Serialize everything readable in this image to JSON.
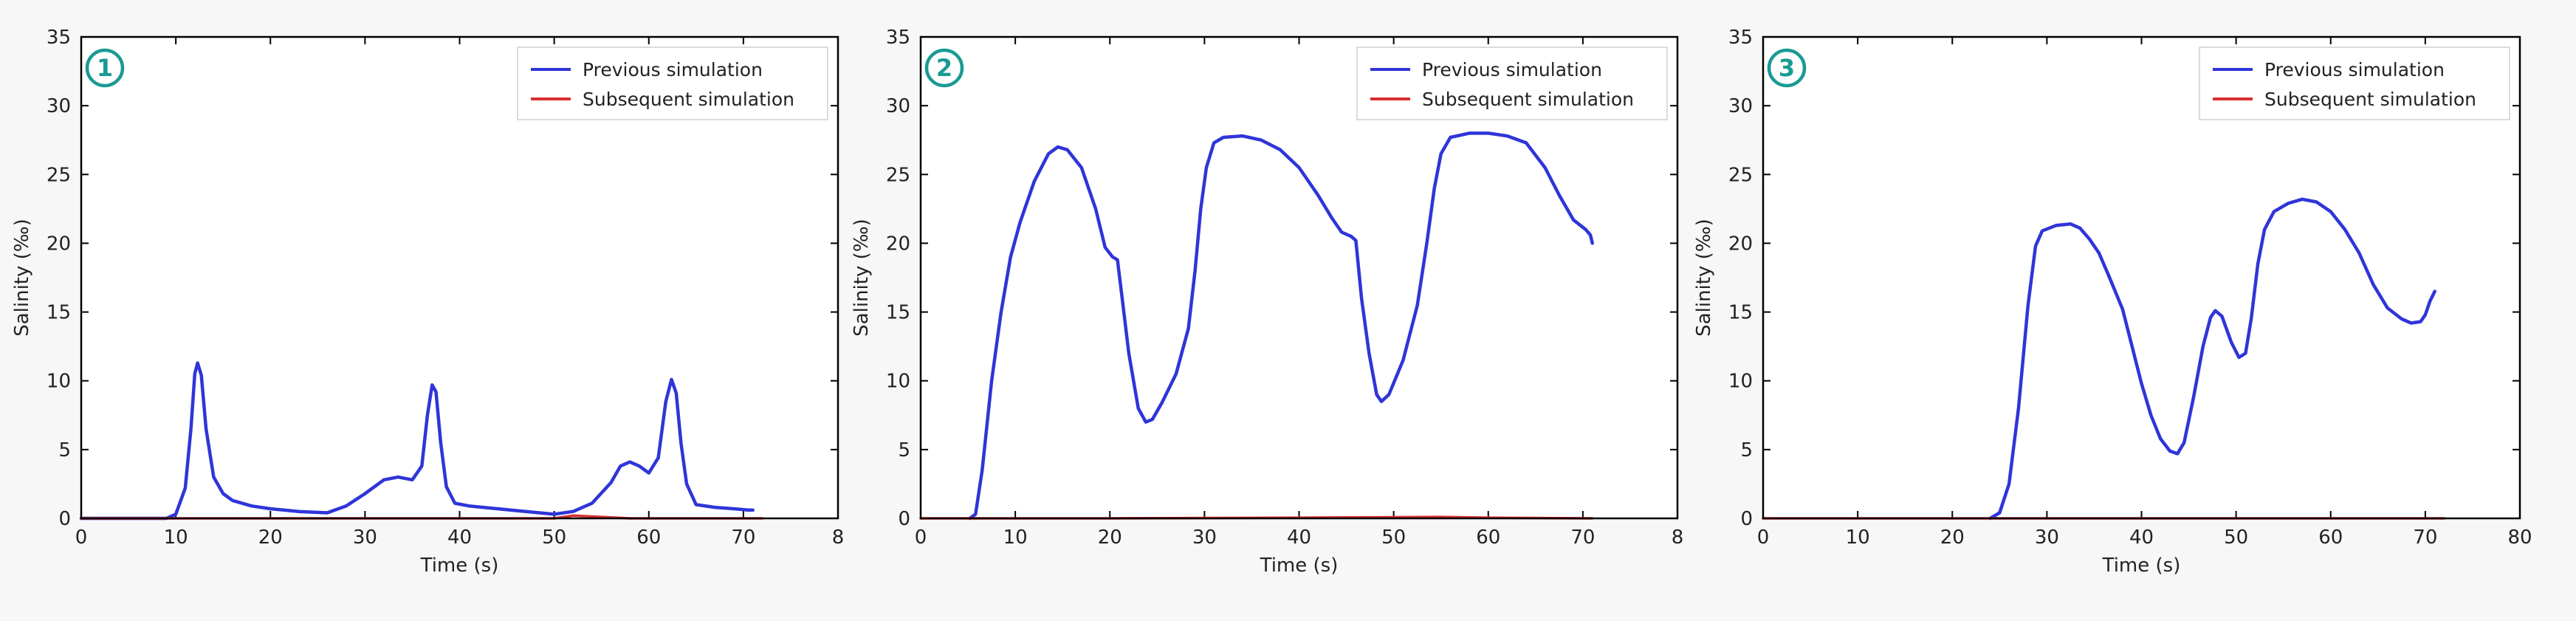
{
  "chart_data": [
    {
      "type": "line",
      "badge": "1",
      "xlabel": "Time (s)",
      "ylabel": "Salinity (‰)",
      "xlim": [
        0,
        80
      ],
      "ylim": [
        0,
        35
      ],
      "xticks": [
        "0",
        "10",
        "20",
        "30",
        "40",
        "50",
        "60",
        "70",
        "8"
      ],
      "yticks": [
        "0",
        "5",
        "10",
        "15",
        "20",
        "25",
        "30",
        "35"
      ],
      "legend_position": "top-right",
      "series": [
        {
          "name": "Previous simulation",
          "color": "#2f35d8",
          "points": [
            [
              0,
              0
            ],
            [
              9,
              0
            ],
            [
              10,
              0.3
            ],
            [
              11,
              2.2
            ],
            [
              11.6,
              6.5
            ],
            [
              12,
              10.5
            ],
            [
              12.3,
              11.3
            ],
            [
              12.7,
              10.4
            ],
            [
              13.2,
              6.5
            ],
            [
              14,
              3
            ],
            [
              15,
              1.8
            ],
            [
              16,
              1.3
            ],
            [
              18,
              0.9
            ],
            [
              20,
              0.7
            ],
            [
              23,
              0.5
            ],
            [
              26,
              0.4
            ],
            [
              28,
              0.9
            ],
            [
              30,
              1.8
            ],
            [
              32,
              2.8
            ],
            [
              33.5,
              3
            ],
            [
              35,
              2.8
            ],
            [
              36,
              3.8
            ],
            [
              36.6,
              7.5
            ],
            [
              37.1,
              9.7
            ],
            [
              37.5,
              9.2
            ],
            [
              38,
              5.5
            ],
            [
              38.6,
              2.3
            ],
            [
              39.5,
              1.1
            ],
            [
              41,
              0.9
            ],
            [
              44,
              0.7
            ],
            [
              47,
              0.5
            ],
            [
              50,
              0.3
            ],
            [
              52,
              0.5
            ],
            [
              54,
              1.1
            ],
            [
              56,
              2.6
            ],
            [
              57,
              3.8
            ],
            [
              58,
              4.1
            ],
            [
              59,
              3.8
            ],
            [
              60,
              3.3
            ],
            [
              61,
              4.4
            ],
            [
              61.8,
              8.5
            ],
            [
              62.4,
              10.1
            ],
            [
              62.9,
              9.1
            ],
            [
              63.4,
              5.5
            ],
            [
              64,
              2.5
            ],
            [
              65,
              1
            ],
            [
              67,
              0.8
            ],
            [
              69,
              0.7
            ],
            [
              70.5,
              0.6
            ],
            [
              71,
              0.6
            ]
          ]
        },
        {
          "name": "Subsequent simulation",
          "color": "#d93030",
          "points": [
            [
              0,
              0
            ],
            [
              50,
              0
            ],
            [
              52,
              0.2
            ],
            [
              55,
              0.1
            ],
            [
              58,
              0
            ],
            [
              72,
              0
            ]
          ]
        }
      ]
    },
    {
      "type": "line",
      "badge": "2",
      "xlabel": "Time (s)",
      "ylabel": "Salinity (‰)",
      "xlim": [
        0,
        80
      ],
      "ylim": [
        0,
        35
      ],
      "xticks": [
        "0",
        "10",
        "20",
        "30",
        "40",
        "50",
        "60",
        "70",
        "8"
      ],
      "yticks": [
        "0",
        "5",
        "10",
        "15",
        "20",
        "25",
        "30",
        "35"
      ],
      "legend_position": "top-right",
      "series": [
        {
          "name": "Previous simulation",
          "color": "#2f35d8",
          "points": [
            [
              5.2,
              0
            ],
            [
              5.8,
              0.3
            ],
            [
              6.5,
              3.5
            ],
            [
              7.5,
              10
            ],
            [
              8.5,
              15
            ],
            [
              9.5,
              19
            ],
            [
              10.5,
              21.5
            ],
            [
              12,
              24.5
            ],
            [
              13.5,
              26.5
            ],
            [
              14.5,
              27
            ],
            [
              15.5,
              26.8
            ],
            [
              17,
              25.5
            ],
            [
              18.5,
              22.5
            ],
            [
              19.5,
              19.7
            ],
            [
              20.3,
              19
            ],
            [
              20.8,
              18.8
            ],
            [
              21.3,
              16
            ],
            [
              22,
              12
            ],
            [
              23,
              8
            ],
            [
              23.8,
              7
            ],
            [
              24.5,
              7.2
            ],
            [
              25.5,
              8.4
            ],
            [
              27,
              10.5
            ],
            [
              28.3,
              13.8
            ],
            [
              29,
              18
            ],
            [
              29.6,
              22.5
            ],
            [
              30.2,
              25.5
            ],
            [
              31,
              27.3
            ],
            [
              32,
              27.7
            ],
            [
              34,
              27.8
            ],
            [
              36,
              27.5
            ],
            [
              38,
              26.8
            ],
            [
              40,
              25.5
            ],
            [
              42,
              23.5
            ],
            [
              43.5,
              21.8
            ],
            [
              44.5,
              20.8
            ],
            [
              45.5,
              20.5
            ],
            [
              46,
              20.2
            ],
            [
              46.6,
              16
            ],
            [
              47.4,
              12
            ],
            [
              48.2,
              9
            ],
            [
              48.7,
              8.5
            ],
            [
              49.5,
              9
            ],
            [
              51,
              11.5
            ],
            [
              52.5,
              15.5
            ],
            [
              53.5,
              20
            ],
            [
              54.3,
              24
            ],
            [
              55,
              26.5
            ],
            [
              56,
              27.7
            ],
            [
              58,
              28
            ],
            [
              60,
              28
            ],
            [
              62,
              27.8
            ],
            [
              64,
              27.3
            ],
            [
              66,
              25.5
            ],
            [
              67.5,
              23.5
            ],
            [
              69,
              21.7
            ],
            [
              70.3,
              21
            ],
            [
              70.8,
              20.6
            ],
            [
              71,
              20
            ]
          ]
        },
        {
          "name": "Subsequent simulation",
          "color": "#d93030",
          "points": [
            [
              0,
              0
            ],
            [
              20,
              0
            ],
            [
              40,
              0.05
            ],
            [
              55,
              0.1
            ],
            [
              60,
              0.05
            ],
            [
              71,
              0
            ]
          ]
        }
      ]
    },
    {
      "type": "line",
      "badge": "3",
      "xlabel": "Time (s)",
      "ylabel": "Salinity (‰)",
      "xlim": [
        0,
        80
      ],
      "ylim": [
        0,
        35
      ],
      "xticks": [
        "0",
        "10",
        "20",
        "30",
        "40",
        "50",
        "60",
        "70",
        "80"
      ],
      "yticks": [
        "0",
        "5",
        "10",
        "15",
        "20",
        "25",
        "30",
        "35"
      ],
      "legend_position": "top-right",
      "series": [
        {
          "name": "Previous simulation",
          "color": "#2f35d8",
          "points": [
            [
              24,
              0
            ],
            [
              25,
              0.4
            ],
            [
              26,
              2.5
            ],
            [
              27,
              8
            ],
            [
              28,
              15.5
            ],
            [
              28.8,
              19.8
            ],
            [
              29.5,
              20.9
            ],
            [
              31,
              21.3
            ],
            [
              32.5,
              21.4
            ],
            [
              33.5,
              21.1
            ],
            [
              34.5,
              20.3
            ],
            [
              35.5,
              19.3
            ],
            [
              36.5,
              17.7
            ],
            [
              38,
              15.2
            ],
            [
              39,
              12.5
            ],
            [
              40,
              9.8
            ],
            [
              41,
              7.5
            ],
            [
              42,
              5.8
            ],
            [
              43,
              4.9
            ],
            [
              43.8,
              4.7
            ],
            [
              44.5,
              5.5
            ],
            [
              45.5,
              8.8
            ],
            [
              46.5,
              12.5
            ],
            [
              47.3,
              14.6
            ],
            [
              47.8,
              15.1
            ],
            [
              48.5,
              14.7
            ],
            [
              49.5,
              12.8
            ],
            [
              50.3,
              11.7
            ],
            [
              51,
              12
            ],
            [
              51.6,
              14.5
            ],
            [
              52.3,
              18.5
            ],
            [
              53,
              21
            ],
            [
              54,
              22.3
            ],
            [
              55.5,
              22.9
            ],
            [
              57,
              23.2
            ],
            [
              58.5,
              23
            ],
            [
              60,
              22.3
            ],
            [
              61.5,
              21
            ],
            [
              63,
              19.3
            ],
            [
              64.5,
              17
            ],
            [
              66,
              15.3
            ],
            [
              67.5,
              14.5
            ],
            [
              68.5,
              14.2
            ],
            [
              69.5,
              14.3
            ],
            [
              70,
              14.8
            ],
            [
              70.5,
              15.8
            ],
            [
              71,
              16.5
            ]
          ]
        },
        {
          "name": "Subsequent simulation",
          "color": "#d93030",
          "points": [
            [
              0,
              0
            ],
            [
              72,
              0
            ]
          ]
        }
      ]
    }
  ]
}
